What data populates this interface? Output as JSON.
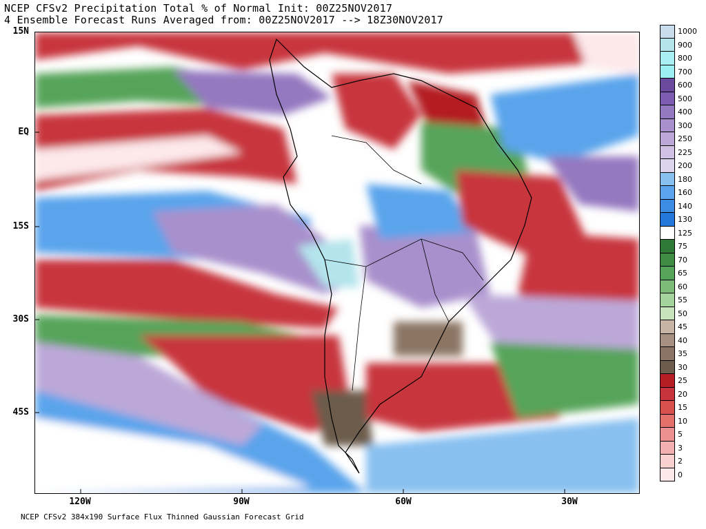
{
  "title": {
    "line1": "NCEP CFSv2 Precipitation Total % of Normal Init: 00Z25NOV2017",
    "line2": "4 Ensemble Forecast Runs Averaged from: 00Z25NOV2017 --> 18Z30NOV2017"
  },
  "footer": "NCEP CFSv2 384x190 Surface Flux Thinned Gaussian Forecast Grid",
  "map": {
    "region": "South America",
    "lat_labels": [
      "15N",
      "EQ",
      "15S",
      "30S",
      "45S"
    ],
    "lon_labels": [
      "120W",
      "90W",
      "60W",
      "30W"
    ]
  },
  "colorbar": {
    "levels": [
      "1000",
      "900",
      "800",
      "700",
      "600",
      "500",
      "400",
      "300",
      "250",
      "225",
      "200",
      "180",
      "160",
      "140",
      "130",
      "125",
      "75",
      "70",
      "65",
      "60",
      "55",
      "50",
      "45",
      "40",
      "35",
      "30",
      "25",
      "20",
      "15",
      "10",
      "5",
      "3",
      "2",
      "0"
    ],
    "colors": [
      "#c8dcec",
      "#b4e4ec",
      "#a8eef2",
      "#9cf0f4",
      "#6a4a9c",
      "#7c5cb0",
      "#9478c0",
      "#a890cc",
      "#bca8d8",
      "#d0c0e4",
      "#dcd4ec",
      "#88c0f0",
      "#5aa4ec",
      "#3c8ce4",
      "#2478dc",
      "#ffffff",
      "#2e7a36",
      "#3e8c44",
      "#56a45a",
      "#7cbc78",
      "#a4d49c",
      "#c8e4bc",
      "#c8b4a4",
      "#a89080",
      "#8c7464",
      "#6c5c4c",
      "#b41e24",
      "#c8343c",
      "#d8504c",
      "#e4706c",
      "#ec9090",
      "#f2b0b0",
      "#f8d0d0",
      "#fde8ea"
    ]
  }
}
